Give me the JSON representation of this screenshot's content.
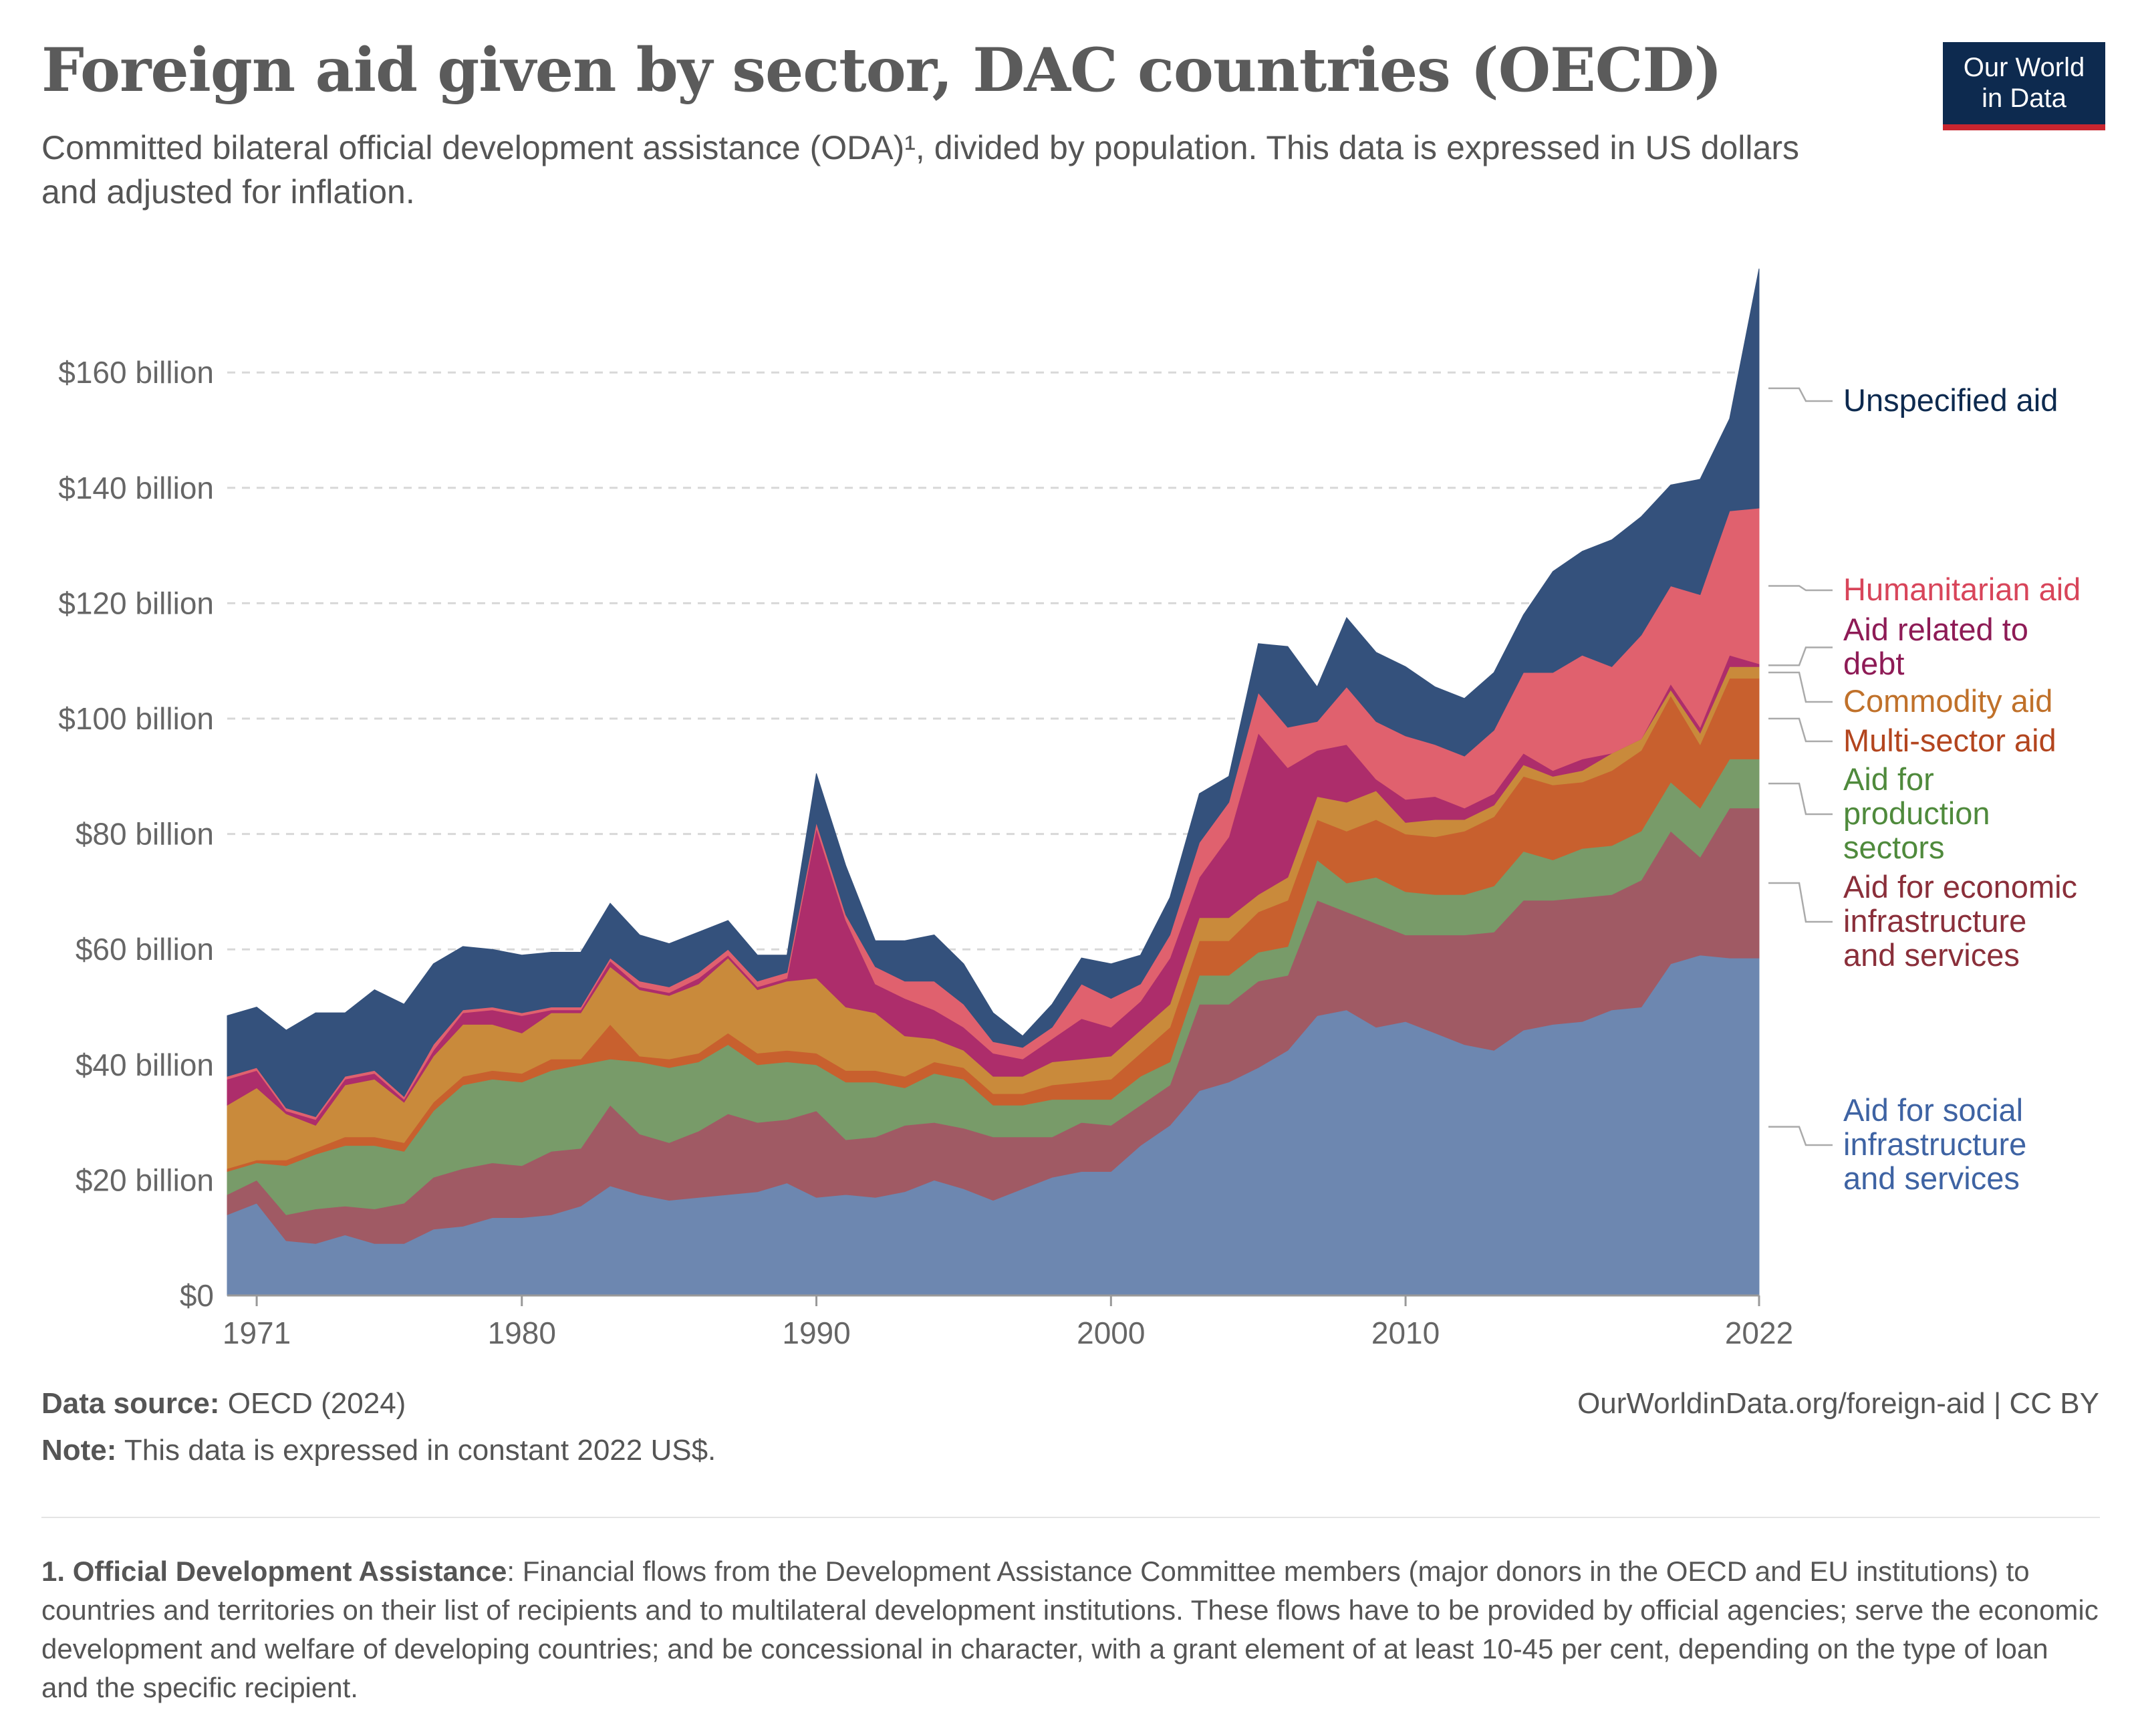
{
  "header": {
    "title": "Foreign aid given by sector, DAC countries (OECD)",
    "subtitle": "Committed bilateral official development assistance (ODA)¹, divided by population. This data is expressed in US dollars and adjusted for inflation.",
    "logo_line1": "Our World",
    "logo_line2": "in Data"
  },
  "footer": {
    "source_label": "Data source:",
    "source_text": "OECD (2024)",
    "note_label": "Note:",
    "note_text": "This data is expressed in constant 2022 US$.",
    "url": "OurWorldinData.org/foreign-aid | CC BY",
    "footnote_label": "1. Official Development Assistance",
    "footnote_text": ": Financial flows from the Development Assistance Committee members (major donors in the OECD and EU institutions) to countries and territories on their list of recipients and to multilateral development institutions. These flows have to be provided by official agencies; serve the economic development and welfare of developing countries; and be concessional in character, with a grant element of at least 10-45 per cent, depending on the type of loan and the specific recipient."
  },
  "colors": {
    "Aid for social infrastructure and services": "#6d87b0",
    "Aid for economic infrastructure and services": "#a05a64",
    "Aid for production sectors": "#789b69",
    "Multi-sector aid": "#c8602e",
    "Commodity aid": "#c98a3b",
    "Aid related to debt": "#ad2d6b",
    "Humanitarian aid": "#e0616e",
    "Unspecified aid": "#34517c",
    "label_Aid for social infrastructure and services": "#3e63a3",
    "label_Aid for economic infrastructure and services": "#8a2f3a",
    "label_Aid for production sectors": "#4f8a3c",
    "label_Multi-sector aid": "#b3451e",
    "label_Commodity aid": "#c0712a",
    "label_Aid related to debt": "#8e1b56",
    "label_Humanitarian aid": "#d8455a",
    "label_Unspecified aid": "#0d2a4f",
    "grid": "#d8d8d8",
    "axis_text": "#666666"
  },
  "chart_data": {
    "type": "area",
    "stacked": true,
    "title": "Foreign aid given by sector, DAC countries (OECD)",
    "xlabel": "",
    "ylabel": "",
    "xlim": [
      1970,
      2022
    ],
    "ylim": [
      0,
      180
    ],
    "y_ticks": [
      0,
      20,
      40,
      60,
      80,
      100,
      120,
      140,
      160
    ],
    "y_tick_labels": [
      "$0",
      "$20 billion",
      "$40 billion",
      "$60 billion",
      "$80 billion",
      "$100 billion",
      "$120 billion",
      "$140 billion",
      "$160 billion"
    ],
    "x_ticks": [
      1971,
      1980,
      1990,
      2000,
      2010,
      2022
    ],
    "x_tick_labels": [
      "1971",
      "1980",
      "1990",
      "2000",
      "2010",
      "2022"
    ],
    "grid": true,
    "legend": "right (inline labels)",
    "unit": "constant 2022 US$ billion",
    "x": [
      1970,
      1971,
      1972,
      1973,
      1974,
      1975,
      1976,
      1977,
      1978,
      1979,
      1980,
      1981,
      1982,
      1983,
      1984,
      1985,
      1986,
      1987,
      1988,
      1989,
      1990,
      1991,
      1992,
      1993,
      1994,
      1995,
      1996,
      1997,
      1998,
      1999,
      2000,
      2001,
      2002,
      2003,
      2004,
      2005,
      2006,
      2007,
      2008,
      2009,
      2010,
      2011,
      2012,
      2013,
      2014,
      2015,
      2016,
      2017,
      2018,
      2019,
      2020,
      2021,
      2022
    ],
    "series": [
      {
        "name": "Aid for social infrastructure and services",
        "values": [
          14,
          16,
          9.5,
          9,
          10.5,
          9,
          9,
          11.5,
          12,
          13.5,
          13.5,
          14,
          15.5,
          19,
          17.5,
          16.5,
          17,
          17.5,
          18,
          19.5,
          17,
          17.5,
          17,
          18,
          20,
          18.5,
          16.5,
          18.5,
          20.5,
          21.5,
          21.5,
          26,
          29.5,
          35.5,
          37,
          39.5,
          42.5,
          48.5,
          49.5,
          46.5,
          47.5,
          45.5,
          43.5,
          42.5,
          46,
          47,
          47.5,
          49.5,
          50,
          57.5,
          59,
          58.5,
          58.5
        ]
      },
      {
        "name": "Aid for economic infrastructure and services",
        "values": [
          3.5,
          4,
          4.5,
          6,
          5,
          6,
          7,
          9,
          10,
          9.5,
          9,
          11,
          10,
          14,
          10.5,
          10,
          11.5,
          14,
          12,
          11,
          15,
          9.5,
          10.5,
          11.5,
          10,
          10.5,
          11,
          9,
          7,
          8.5,
          8,
          7,
          7,
          15,
          13.5,
          15,
          13,
          20,
          17,
          18,
          15,
          17,
          19,
          20.5,
          22.5,
          21.5,
          21.5,
          20,
          22,
          23,
          17,
          26,
          26
        ]
      },
      {
        "name": "Aid for production sectors",
        "values": [
          4,
          3,
          8.5,
          9.5,
          10.5,
          11,
          9,
          11.5,
          14.5,
          14.5,
          14.5,
          14,
          14.5,
          8,
          12.5,
          13,
          12,
          12,
          10,
          10,
          8,
          10,
          9.5,
          6.5,
          8.5,
          8.5,
          5.5,
          5.5,
          6.5,
          4,
          4.5,
          5,
          4,
          5,
          5,
          5,
          5,
          7,
          5,
          8,
          7.5,
          7,
          7,
          8,
          8.5,
          7,
          8.5,
          8.5,
          8.5,
          8.5,
          8.5,
          8.5,
          8.5
        ]
      },
      {
        "name": "Multi-sector aid",
        "values": [
          0.5,
          0.5,
          1,
          1,
          1.5,
          1.5,
          1.5,
          1.5,
          1.5,
          1.5,
          1.5,
          2,
          1,
          6,
          1,
          1.5,
          1.5,
          2,
          2,
          2,
          2,
          2,
          2,
          2,
          2,
          2,
          2,
          2,
          2.5,
          3,
          3.5,
          4,
          6,
          6,
          6,
          7,
          8,
          7,
          9,
          10,
          10,
          10,
          11,
          12,
          13,
          13,
          11.5,
          13,
          14,
          15,
          11,
          14,
          14
        ]
      },
      {
        "name": "Commodity aid",
        "values": [
          11,
          12.5,
          8,
          4,
          9,
          10,
          7,
          8,
          9,
          8,
          7,
          8,
          8,
          10,
          11.5,
          11,
          12,
          13,
          11,
          12,
          13,
          11,
          10,
          7,
          4,
          3,
          3,
          3,
          4,
          4,
          4,
          4,
          4,
          4,
          4,
          3,
          4,
          4,
          5,
          5,
          2,
          3,
          2,
          2,
          2,
          1.5,
          2,
          3,
          2,
          1,
          2,
          2,
          2
        ]
      },
      {
        "name": "Aid related to debt",
        "values": [
          4.5,
          3,
          0.5,
          1,
          1,
          1,
          0.5,
          1,
          2,
          2.5,
          3,
          0.5,
          0.5,
          1,
          0.5,
          0.5,
          1,
          0.5,
          0.5,
          0.5,
          26,
          15,
          5,
          6.5,
          5,
          4,
          4,
          3,
          4,
          7,
          5,
          5,
          8,
          7,
          14,
          28,
          19,
          8,
          10,
          2,
          4,
          4,
          2,
          2,
          2,
          1,
          2,
          0,
          0,
          1,
          1,
          2,
          0.5
        ]
      },
      {
        "name": "Humanitarian aid",
        "values": [
          0.5,
          0.5,
          0.5,
          0.5,
          0.5,
          0.5,
          0.5,
          1,
          0.5,
          0.5,
          0.5,
          0.5,
          0.5,
          0.5,
          1,
          1,
          1,
          1,
          1,
          1,
          1,
          1,
          3,
          3,
          5,
          4,
          2,
          2,
          2,
          6,
          5,
          3,
          4,
          6,
          6,
          7,
          7,
          5,
          10,
          10,
          11,
          9,
          9,
          11,
          14,
          17,
          18,
          15,
          18,
          17,
          23,
          25,
          27
        ]
      },
      {
        "name": "Unspecified aid",
        "values": [
          10.5,
          10.5,
          13.5,
          18,
          11,
          14,
          16,
          14,
          11,
          10,
          10,
          9.5,
          9.5,
          9.5,
          8,
          7.5,
          7,
          5,
          4.5,
          3,
          8.5,
          8.5,
          4.5,
          7,
          8,
          7,
          5,
          2,
          4,
          4.5,
          6,
          5,
          6.5,
          8.5,
          4.5,
          8.5,
          14,
          6,
          12,
          12,
          12,
          10,
          10,
          10,
          10,
          17.5,
          18,
          22,
          20.5,
          17.5,
          20,
          16,
          41.5
        ]
      }
    ]
  }
}
